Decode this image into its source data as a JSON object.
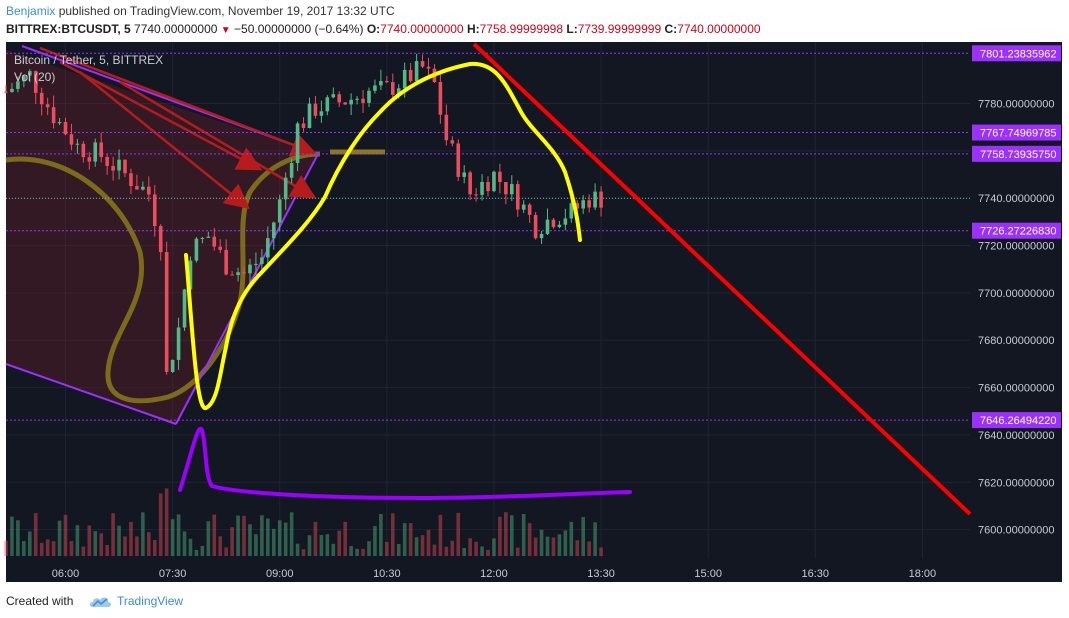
{
  "header": {
    "author": "Benjamix",
    "published_text": "published on TradingView.com, November 19, 2017 13:32 UTC",
    "symbol_line": "BITTREX:BTCUSDT, 5",
    "last_price": "7740.00000000",
    "change": "−50.00000000 (−0.64%)",
    "o_label": "O:",
    "o_value": "7740.00000000",
    "h_label": "H:",
    "h_value": "7758.99999998",
    "l_label": "L:",
    "l_value": "7739.99999999",
    "c_label": "C:",
    "c_value": "7740.00000000"
  },
  "legend": {
    "title": "Bitcoin / Tether, 5, BITTREX",
    "volume": "Vol (20)"
  },
  "footer": {
    "created_with": "Created with",
    "brand": "TradingView",
    "brand_icon": "tradingview-cloud-icon"
  },
  "colors": {
    "background": "#131722",
    "grid": "#1f2433",
    "up": "#53b987",
    "down": "#eb4d5c",
    "level_line": "#9b30ff",
    "level_badge": "#9b30ff",
    "yellow_drawing": "#ffff00",
    "red_trendline": "#ff0000",
    "purple_drawing": "#9b00ff",
    "accent": "#3a8cd8"
  },
  "chart_data": {
    "type": "candlestick",
    "title": "Bitcoin / Tether, 5, BITTREX",
    "y_range": [
      7588,
      7806
    ],
    "x_range_time": [
      "05:10",
      "18:40"
    ],
    "x_ticks": [
      "06:00",
      "07:30",
      "09:00",
      "10:30",
      "12:00",
      "13:30",
      "15:00",
      "16:30",
      "18:00"
    ],
    "y_ticks": [
      "7780.00000000",
      "7760.00000000",
      "7740.00000000",
      "7720.00000000",
      "7700.00000000",
      "7680.00000000",
      "7660.00000000",
      "7640.00000000",
      "7620.00000000",
      "7600.00000000"
    ],
    "y_tick_values": [
      7780,
      7760,
      7740,
      7720,
      7700,
      7680,
      7660,
      7640,
      7620,
      7600
    ],
    "current_price": 7740,
    "horizontal_levels": [
      {
        "value": 7801.23835962,
        "label": "7801.23835962"
      },
      {
        "value": 7767.74969785,
        "label": "7767.74969785"
      },
      {
        "value": 7758.7393575,
        "label": "7758.73935750"
      },
      {
        "value": 7726.2722683,
        "label": "7726.27226830"
      },
      {
        "value": 7646.2649422,
        "label": "7646.26494220"
      }
    ],
    "price_path": [
      [
        "05:10",
        7785
      ],
      [
        "05:30",
        7792
      ],
      [
        "05:50",
        7775
      ],
      [
        "06:10",
        7762
      ],
      [
        "06:30",
        7758
      ],
      [
        "06:50",
        7750
      ],
      [
        "07:10",
        7742
      ],
      [
        "07:20",
        7722
      ],
      [
        "07:25",
        7665
      ],
      [
        "07:35",
        7685
      ],
      [
        "07:45",
        7718
      ],
      [
        "08:00",
        7724
      ],
      [
        "08:15",
        7712
      ],
      [
        "08:30",
        7708
      ],
      [
        "08:45",
        7715
      ],
      [
        "09:00",
        7738
      ],
      [
        "09:15",
        7770
      ],
      [
        "09:30",
        7778
      ],
      [
        "09:45",
        7780
      ],
      [
        "10:00",
        7782
      ],
      [
        "10:15",
        7785
      ],
      [
        "10:30",
        7786
      ],
      [
        "10:45",
        7790
      ],
      [
        "11:00",
        7795
      ],
      [
        "11:10",
        7788
      ],
      [
        "11:20",
        7765
      ],
      [
        "11:40",
        7742
      ],
      [
        "12:00",
        7750
      ],
      [
        "12:20",
        7740
      ],
      [
        "12:35",
        7728
      ],
      [
        "12:50",
        7732
      ],
      [
        "13:05",
        7734
      ],
      [
        "13:20",
        7740
      ],
      [
        "13:30",
        7740
      ]
    ],
    "volume_ma_note": "Vol (20)"
  }
}
